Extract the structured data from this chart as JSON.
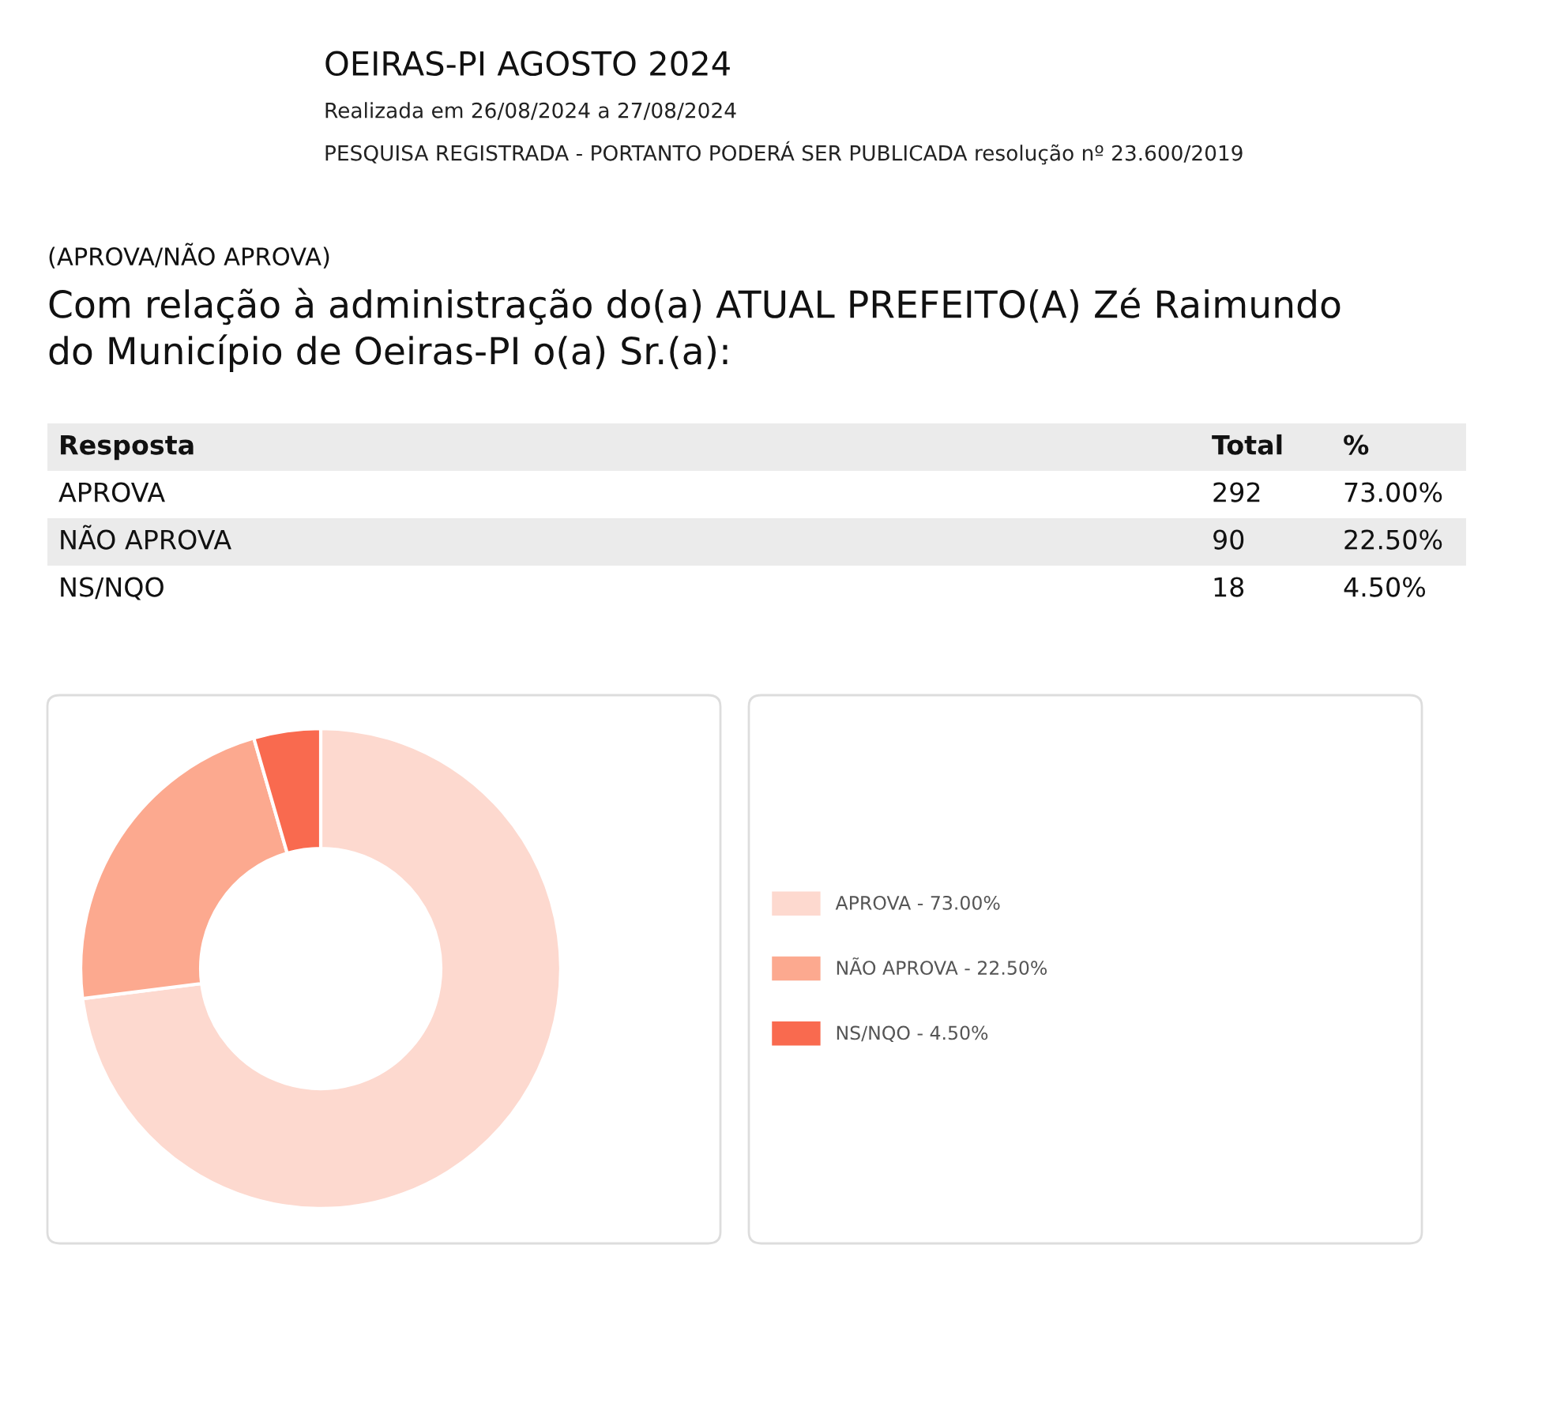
{
  "chart_data": [
    {
      "type": "other",
      "title": "OEIRAS-PI AGOSTO 2024",
      "subtitle": "Realizada em 26/08/2024 a 27/08/2024",
      "annotations": [
        "PESQUISA REGISTRADA - PORTANTO PODERÁ SER PUBLICADA resolução nº 23.600/2019",
        "(APROVA/NÃO APROVA)",
        "Com relação à administração do(a) ATUAL PREFEITO(A) Zé Raimundo\ndo Município de Oeiras-PI o(a) Sr.(a):",
        "Resposta",
        "Total",
        "%",
        "APROVA",
        "292",
        "73.00%",
        "NÃO APROVA",
        "90",
        "22.50%",
        "NS/NQO",
        "18",
        "4.50%"
      ]
    },
    {
      "type": "donut",
      "categories": [
        "APROVA - 73.00%",
        "NÃO APROVA - 22.50%",
        "NS/NQO - 4.50%"
      ],
      "values": [
        73.0,
        22.5,
        4.5
      ],
      "colors": [
        "#fdd9cf",
        "#fca98f",
        "#f96a4f"
      ],
      "legend": "right"
    }
  ]
}
